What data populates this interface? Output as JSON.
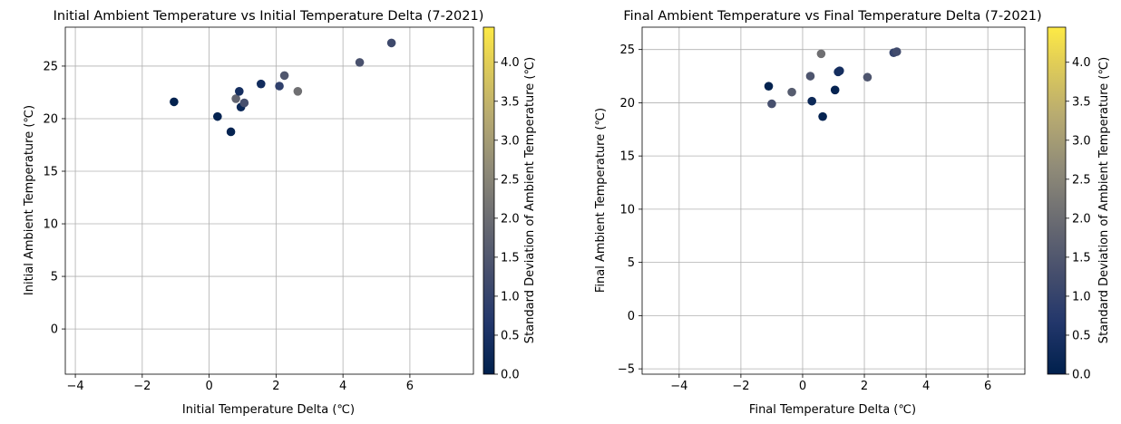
{
  "chart_data": [
    {
      "type": "scatter",
      "title": "Initial Ambient Temperature vs Initial Temperature Delta (7-2021)",
      "xlabel": "Initial Temperature Delta (℃)",
      "ylabel": "Initial Ambient Temperature (℃)",
      "xlim": [
        -4.3,
        7.9
      ],
      "ylim": [
        -4.3,
        28.7
      ],
      "xticks": [
        -4,
        -2,
        0,
        2,
        4,
        6
      ],
      "yticks": [
        0,
        5,
        10,
        15,
        20,
        25
      ],
      "grid": true,
      "colormap": "cividis",
      "colorbar": {
        "label": "Standard Deviation of Ambient Temperature (℃)",
        "range": [
          0,
          4.45
        ],
        "ticks": [
          "0.0",
          "0.5",
          "1.0",
          "1.5",
          "2.0",
          "2.5",
          "3.0",
          "3.5",
          "4.0"
        ]
      },
      "points": [
        {
          "x": -1.05,
          "y": 21.6,
          "c": 0.05
        },
        {
          "x": 0.25,
          "y": 20.2,
          "c": 0.1
        },
        {
          "x": 0.65,
          "y": 18.75,
          "c": 0.1
        },
        {
          "x": 0.8,
          "y": 21.9,
          "c": 1.8
        },
        {
          "x": 0.9,
          "y": 22.6,
          "c": 0.4
        },
        {
          "x": 0.95,
          "y": 21.1,
          "c": 0.2
        },
        {
          "x": 1.05,
          "y": 21.5,
          "c": 1.3
        },
        {
          "x": 1.55,
          "y": 23.3,
          "c": 0.35
        },
        {
          "x": 2.1,
          "y": 23.1,
          "c": 0.9
        },
        {
          "x": 2.25,
          "y": 24.1,
          "c": 1.5
        },
        {
          "x": 2.65,
          "y": 22.6,
          "c": 2.05
        },
        {
          "x": 4.5,
          "y": 25.35,
          "c": 1.35
        },
        {
          "x": 5.45,
          "y": 27.2,
          "c": 1.15
        }
      ]
    },
    {
      "type": "scatter",
      "title": "Final Ambient Temperature vs Final Temperature Delta (7-2021)",
      "xlabel": "Final Temperature Delta (℃)",
      "ylabel": "Final Ambient Temperature (℃)",
      "xlim": [
        -5.2,
        7.2
      ],
      "ylim": [
        -5.5,
        27.1
      ],
      "xticks": [
        -4,
        -2,
        0,
        2,
        4,
        6
      ],
      "yticks": [
        -5,
        0,
        5,
        10,
        15,
        20,
        25
      ],
      "grid": true,
      "colormap": "cividis",
      "colorbar": {
        "label": "Standard Deviation of Ambient Temperature (℃)",
        "range": [
          0,
          4.45
        ],
        "ticks": [
          "0.0",
          "0.5",
          "1.0",
          "1.5",
          "2.0",
          "2.5",
          "3.0",
          "3.5",
          "4.0"
        ]
      },
      "points": [
        {
          "x": -1.1,
          "y": 21.55,
          "c": 0.05
        },
        {
          "x": -1.0,
          "y": 19.9,
          "c": 1.3
        },
        {
          "x": -0.35,
          "y": 21.0,
          "c": 1.6
        },
        {
          "x": 0.25,
          "y": 22.5,
          "c": 1.45
        },
        {
          "x": 0.3,
          "y": 20.15,
          "c": 0.25
        },
        {
          "x": 0.6,
          "y": 24.6,
          "c": 2.05
        },
        {
          "x": 0.65,
          "y": 18.7,
          "c": 0.1
        },
        {
          "x": 1.05,
          "y": 21.2,
          "c": 0.1
        },
        {
          "x": 1.15,
          "y": 22.9,
          "c": 0.4
        },
        {
          "x": 1.2,
          "y": 23.0,
          "c": 0.4
        },
        {
          "x": 2.1,
          "y": 22.4,
          "c": 1.45
        },
        {
          "x": 2.95,
          "y": 24.7,
          "c": 1.0
        },
        {
          "x": 3.05,
          "y": 24.8,
          "c": 1.2
        }
      ]
    }
  ]
}
